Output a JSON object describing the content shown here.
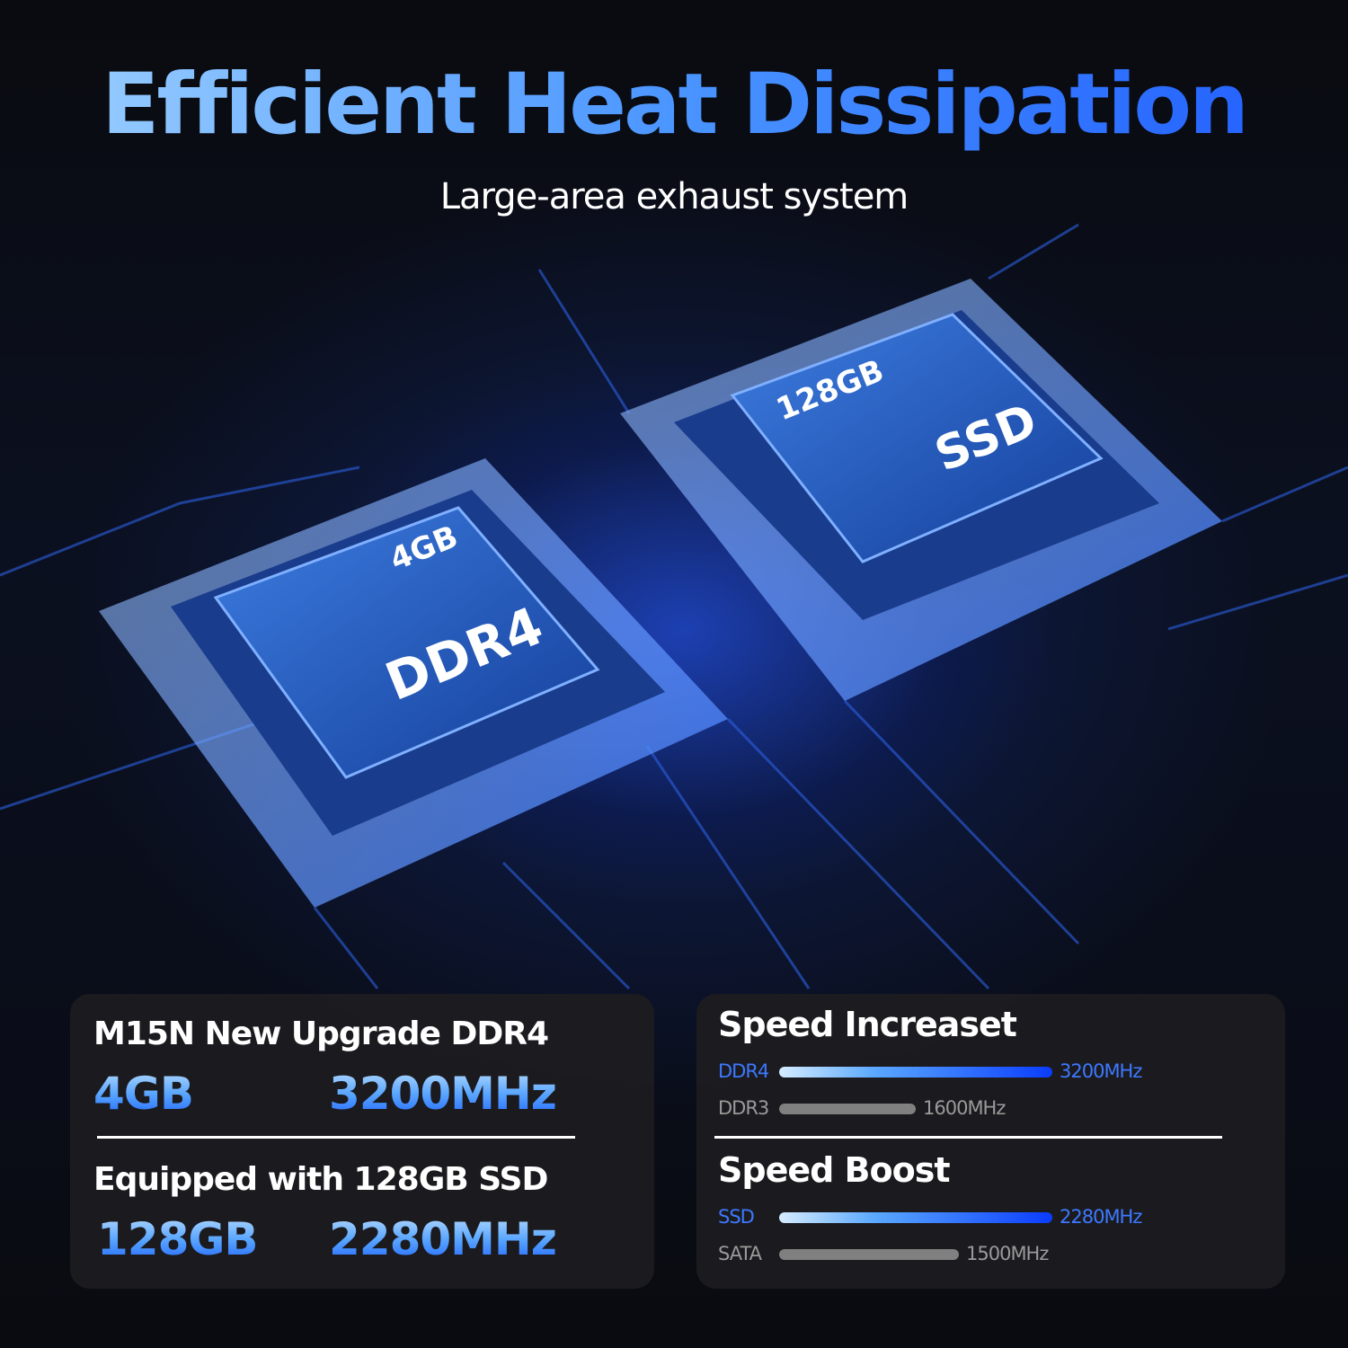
{
  "header": {
    "title": "Efficient Heat Dissipation",
    "subtitle": "Large-area exhaust system"
  },
  "chips": {
    "ram": {
      "capacity": "4GB",
      "type": "DDR4"
    },
    "storage": {
      "capacity": "128GB",
      "type": "SSD"
    }
  },
  "left_card": {
    "ram_heading": "M15N New Upgrade DDR4",
    "ram_capacity": "4GB",
    "ram_speed": "3200MHz",
    "ssd_heading": "Equipped with 128GB SSD",
    "ssd_capacity": "128GB",
    "ssd_speed": "2280MHz"
  },
  "right_card": {
    "groups": [
      {
        "heading": "Speed Increaset",
        "bars": [
          {
            "label": "DDR4",
            "value_label": "3200MHz",
            "value": 3200,
            "style": "blue"
          },
          {
            "label": "DDR3",
            "value_label": "1600MHz",
            "value": 1600,
            "style": "gray"
          }
        ]
      },
      {
        "heading": "Speed Boost",
        "bars": [
          {
            "label": "SSD",
            "value_label": "2280MHz",
            "value": 2280,
            "style": "blue"
          },
          {
            "label": "SATA",
            "value_label": "1500MHz",
            "value": 1500,
            "style": "gray"
          }
        ]
      }
    ]
  },
  "colors": {
    "accent_blue": "#2f6bff",
    "highlight_blue": "#5aa8ff",
    "card_bg": "#1c1c20",
    "bar_gray": "#808080"
  }
}
